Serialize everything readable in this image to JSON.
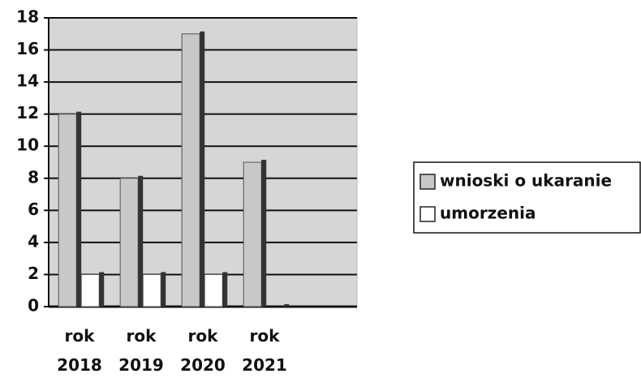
{
  "chart_data": {
    "type": "bar",
    "categories": [
      "rok 2018",
      "rok 2019",
      "rok 2020",
      "rok 2021",
      null
    ],
    "series": [
      {
        "name": "wnioski o ukaranie",
        "color": "#c8c8c8",
        "values": [
          12,
          8,
          17,
          9,
          null
        ]
      },
      {
        "name": "umorzenia",
        "color": "#ffffff",
        "values": [
          2,
          2,
          2,
          0,
          null
        ]
      }
    ],
    "ylim": [
      0,
      18
    ],
    "yticks": [
      0,
      2,
      4,
      6,
      8,
      10,
      12,
      14,
      16,
      18
    ],
    "grid": true,
    "legend": "right"
  }
}
